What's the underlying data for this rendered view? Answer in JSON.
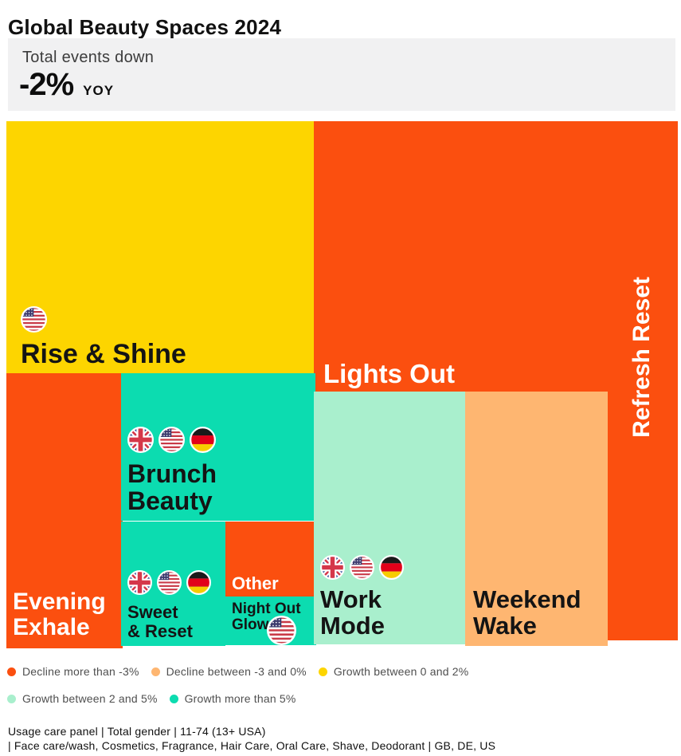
{
  "title": "Global Beauty Spaces 2024",
  "banner": {
    "line1": "Total events down",
    "value": "-2%",
    "unit": "YOY"
  },
  "colors": {
    "orange": "#FB4F0F",
    "peach": "#FEB671",
    "yellow": "#FDD500",
    "mint": "#A9EFCD",
    "teal": "#0CDCB0",
    "banner_bg": "#F1F1F2",
    "text_dark": "#141414",
    "text_light": "#FFFFFF"
  },
  "treemap": {
    "tiles": [
      {
        "id": "rise-shine",
        "lines": [
          "Rise & Shine"
        ],
        "color": "yellow",
        "text": "dark",
        "flags": [
          "US"
        ]
      },
      {
        "id": "lights-out",
        "lines": [
          "Lights Out"
        ],
        "color": "orange",
        "text": "light",
        "flags": []
      },
      {
        "id": "refresh-reset",
        "lines": [
          "Refresh Reset"
        ],
        "color": "orange",
        "text": "light",
        "flags": []
      },
      {
        "id": "evening-exhale",
        "lines": [
          "Evening",
          "Exhale"
        ],
        "color": "orange",
        "text": "light",
        "flags": []
      },
      {
        "id": "brunch-beauty",
        "lines": [
          "Brunch",
          "Beauty"
        ],
        "color": "teal",
        "text": "dark",
        "flags": [
          "GB",
          "US",
          "DE"
        ]
      },
      {
        "id": "sweet-reset",
        "lines": [
          "Sweet",
          "& Reset"
        ],
        "color": "teal",
        "text": "dark",
        "flags": [
          "GB",
          "US",
          "DE"
        ]
      },
      {
        "id": "other",
        "lines": [
          "Other"
        ],
        "color": "orange",
        "text": "light",
        "flags": []
      },
      {
        "id": "night-out-glow",
        "lines": [
          "Night Out",
          "Glow"
        ],
        "color": "teal",
        "text": "dark",
        "flags": [
          "US"
        ]
      },
      {
        "id": "work-mode",
        "lines": [
          "Work",
          "Mode"
        ],
        "color": "mint",
        "text": "dark",
        "flags": [
          "GB",
          "US",
          "DE"
        ]
      },
      {
        "id": "weekend-wake",
        "lines": [
          "Weekend",
          "Wake"
        ],
        "color": "peach",
        "text": "dark",
        "flags": []
      }
    ]
  },
  "legend": [
    {
      "label": "Decline more than -3%",
      "color": "orange"
    },
    {
      "label": "Decline between -3 and 0%",
      "color": "peach"
    },
    {
      "label": "Growth between 0 and 2%",
      "color": "yellow"
    },
    {
      "label": "Growth between 2 and 5%",
      "color": "mint"
    },
    {
      "label": "Growth more than 5%",
      "color": "teal"
    }
  ],
  "footer": {
    "line1": "Usage care panel | Total gender | 11-74 (13+ USA)",
    "line2": "| Face care/wash, Cosmetics, Fragrance, Hair Care, Oral Care, Shave, Deodorant | GB, DE, US"
  },
  "chart_data": {
    "type": "treemap",
    "title": "Global Beauty Spaces 2024",
    "subtitle": "Total events down -2% YOY",
    "color_encoding": "Year-over-year growth band of beauty usage events",
    "legend_position": "bottom",
    "nodes": [
      {
        "name": "Lights Out",
        "growth_band": "Decline more than -3%",
        "markets": [],
        "area_pct_est": 22.0
      },
      {
        "name": "Rise & Shine",
        "growth_band": "Growth between 0 and 2%",
        "markets": [
          "US"
        ],
        "area_pct_est": 21.0
      },
      {
        "name": "Refresh Reset",
        "growth_band": "Decline more than -3%",
        "markets": [],
        "area_pct_est": 11.0
      },
      {
        "name": "Work Mode",
        "growth_band": "Growth between 2 and 5%",
        "markets": [
          "GB",
          "US",
          "DE"
        ],
        "area_pct_est": 10.5
      },
      {
        "name": "Weekend Wake",
        "growth_band": "Decline between -3 and 0%",
        "markets": [],
        "area_pct_est": 9.6
      },
      {
        "name": "Evening Exhale",
        "growth_band": "Decline more than -3%",
        "markets": [],
        "area_pct_est": 8.5
      },
      {
        "name": "Brunch Beauty",
        "growth_band": "Growth more than 5%",
        "markets": [
          "GB",
          "US",
          "DE"
        ],
        "area_pct_est": 7.8
      },
      {
        "name": "Sweet & Reset",
        "growth_band": "Growth more than 5%",
        "markets": [
          "GB",
          "US",
          "DE"
        ],
        "area_pct_est": 3.4
      },
      {
        "name": "Other",
        "growth_band": "Decline more than -3%",
        "markets": [],
        "area_pct_est": 1.7
      },
      {
        "name": "Night Out Glow",
        "growth_band": "Growth more than 5%",
        "markets": [
          "US"
        ],
        "area_pct_est": 1.0
      }
    ]
  }
}
